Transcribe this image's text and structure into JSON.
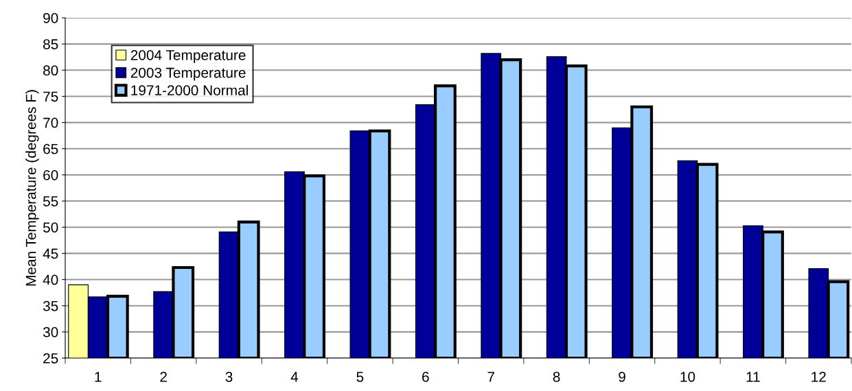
{
  "chart_data": {
    "type": "bar",
    "ylabel": "Mean Temperature (degrees F)",
    "categories": [
      "1",
      "2",
      "3",
      "4",
      "5",
      "6",
      "7",
      "8",
      "9",
      "10",
      "11",
      "12"
    ],
    "series": [
      {
        "name": "2004 Temperature",
        "color": "#ffff99",
        "values": [
          39.0,
          null,
          null,
          null,
          null,
          null,
          null,
          null,
          null,
          null,
          null,
          null
        ]
      },
      {
        "name": "2003 Temperature",
        "color": "#000099",
        "values": [
          36.7,
          37.7,
          49.1,
          60.6,
          68.4,
          73.4,
          83.2,
          82.6,
          69.0,
          62.7,
          50.3,
          42.1
        ]
      },
      {
        "name": "1971-2000 Normal",
        "color": "#99ccff",
        "values": [
          36.8,
          42.3,
          51.0,
          59.8,
          68.4,
          77.0,
          82.0,
          80.8,
          73.0,
          62.0,
          49.1,
          39.6
        ]
      }
    ],
    "ylim": [
      25,
      90
    ],
    "yticks": [
      25,
      30,
      35,
      40,
      45,
      50,
      55,
      60,
      65,
      70,
      75,
      80,
      85,
      90
    ],
    "grid": "y",
    "legend": "top left"
  }
}
